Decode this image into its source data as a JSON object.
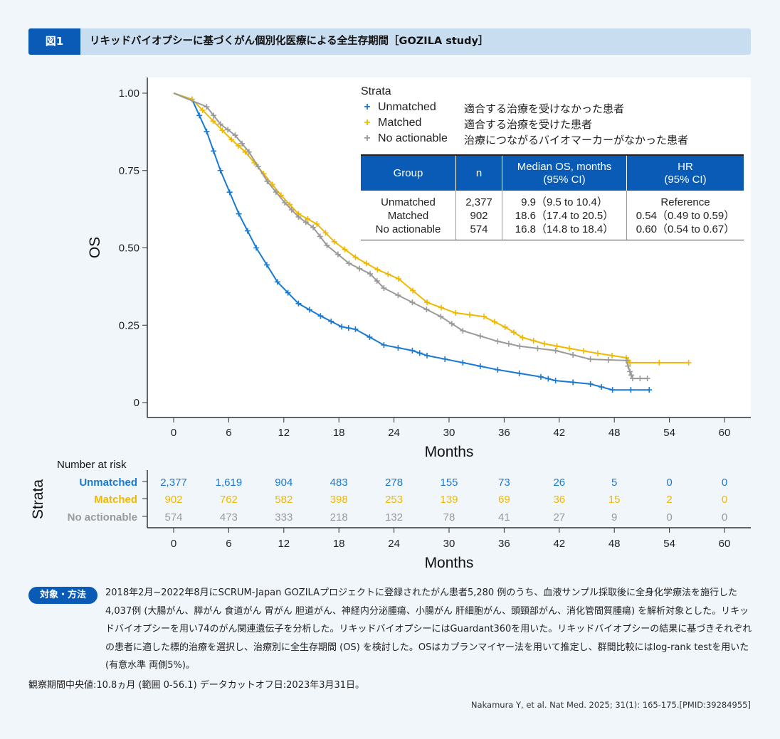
{
  "header": {
    "figure_label": "図1",
    "title": "リキッドバイオプシーに基づくがん個別化医療による全生存期間［GOZILA study］"
  },
  "colors": {
    "unmatched": "#1a7ad1",
    "matched": "#f0b800",
    "no_actionable": "#9a9a9a",
    "accent": "#0a5bb5"
  },
  "legend": {
    "title": "Strata",
    "items": [
      {
        "label": "Unmatched",
        "description": "適合する治療を受けなかった患者"
      },
      {
        "label": "Matched",
        "description": "適合する治療を受けた患者"
      },
      {
        "label": "No actionable",
        "description": "治療につながるバイオマーカーがなかった患者"
      }
    ]
  },
  "stats_table": {
    "headers": [
      "Group",
      "n",
      "Median OS, months\n(95% CI)",
      "HR\n(95% CI)"
    ],
    "rows": [
      [
        "Unmatched",
        "2,377",
        "9.9（9.5 to 10.4）",
        "Reference"
      ],
      [
        "Matched",
        "902",
        "18.6（17.4 to 20.5）",
        "0.54（0.49 to 0.59）"
      ],
      [
        "No actionable",
        "574",
        "16.8（14.8 to 18.4）",
        "0.60（0.54 to 0.67）"
      ]
    ]
  },
  "chart_data": {
    "type": "line",
    "subtype": "kaplan-meier",
    "xlabel": "Months",
    "ylabel": "OS",
    "xlim": [
      -3,
      63
    ],
    "ylim": [
      -0.05,
      1.05
    ],
    "xticks": [
      "0",
      "6",
      "12",
      "18",
      "24",
      "30",
      "36",
      "42",
      "48",
      "54",
      "60"
    ],
    "yticks": [
      "0",
      "0.25",
      "0.50",
      "0.75",
      "1.00"
    ],
    "grid": false,
    "legend_position": "top-right",
    "series": [
      {
        "name": "Unmatched",
        "points": [
          [
            0,
            1
          ],
          [
            2,
            0.98
          ],
          [
            3.6,
            0.876
          ],
          [
            5.1,
            0.75
          ],
          [
            7.1,
            0.61
          ],
          [
            9,
            0.5
          ],
          [
            11.3,
            0.39
          ],
          [
            13.6,
            0.32
          ],
          [
            16,
            0.28
          ],
          [
            18.3,
            0.245
          ],
          [
            19.8,
            0.237
          ],
          [
            22.9,
            0.186
          ],
          [
            26,
            0.168
          ],
          [
            27.6,
            0.152
          ],
          [
            31.5,
            0.129
          ],
          [
            35.3,
            0.106
          ],
          [
            40,
            0.083
          ],
          [
            41.6,
            0.071
          ],
          [
            45.4,
            0.06
          ],
          [
            47.8,
            0.041
          ],
          [
            51.8,
            0.041
          ]
        ]
      },
      {
        "name": "Matched",
        "points": [
          [
            0,
            1
          ],
          [
            2,
            0.98
          ],
          [
            4.3,
            0.91
          ],
          [
            6.3,
            0.85
          ],
          [
            7.8,
            0.81
          ],
          [
            9.8,
            0.74
          ],
          [
            11.7,
            0.67
          ],
          [
            13.6,
            0.61
          ],
          [
            15.6,
            0.577
          ],
          [
            17.5,
            0.52
          ],
          [
            19.8,
            0.47
          ],
          [
            22.2,
            0.43
          ],
          [
            24.5,
            0.4
          ],
          [
            27.6,
            0.324
          ],
          [
            30.7,
            0.29
          ],
          [
            33.8,
            0.278
          ],
          [
            36.1,
            0.244
          ],
          [
            38,
            0.21
          ],
          [
            40.4,
            0.19
          ],
          [
            43.1,
            0.175
          ],
          [
            46.2,
            0.159
          ],
          [
            49.3,
            0.145
          ],
          [
            49.7,
            0.129
          ],
          [
            56.1,
            0.129
          ]
        ]
      },
      {
        "name": "No actionable",
        "points": [
          [
            0,
            1
          ],
          [
            3.6,
            0.956
          ],
          [
            5.1,
            0.9
          ],
          [
            6.7,
            0.864
          ],
          [
            8.2,
            0.81
          ],
          [
            10.2,
            0.715
          ],
          [
            12.1,
            0.646
          ],
          [
            13.6,
            0.6
          ],
          [
            15.2,
            0.566
          ],
          [
            16.7,
            0.508
          ],
          [
            19.1,
            0.45
          ],
          [
            21.4,
            0.416
          ],
          [
            22.9,
            0.37
          ],
          [
            26,
            0.324
          ],
          [
            29.1,
            0.278
          ],
          [
            31.5,
            0.232
          ],
          [
            35.3,
            0.198
          ],
          [
            37.7,
            0.182
          ],
          [
            41.6,
            0.168
          ],
          [
            45.4,
            0.14
          ],
          [
            49.3,
            0.136
          ],
          [
            49.7,
            0.1
          ],
          [
            50,
            0.078
          ],
          [
            51.6,
            0.078
          ]
        ]
      }
    ],
    "risk_table": {
      "title": "Number at risk",
      "ylabel": "Strata",
      "xlabel": "Months",
      "times": [
        "0",
        "6",
        "12",
        "18",
        "24",
        "30",
        "36",
        "42",
        "48",
        "54",
        "60"
      ],
      "rows": [
        {
          "name": "Unmatched",
          "values": [
            "2,377",
            "1,619",
            "904",
            "483",
            "278",
            "155",
            "73",
            "26",
            "5",
            "0",
            "0"
          ]
        },
        {
          "name": "Matched",
          "values": [
            "902",
            "762",
            "582",
            "398",
            "253",
            "139",
            "69",
            "36",
            "15",
            "2",
            "0"
          ]
        },
        {
          "name": "No actionable",
          "values": [
            "574",
            "473",
            "333",
            "218",
            "132",
            "78",
            "41",
            "27",
            "9",
            "0",
            "0"
          ]
        }
      ]
    }
  },
  "methods": {
    "label": "対象・方法",
    "text": "2018年2月~2022年8月にSCRUM-Japan GOZILAプロジェクトに登録されたがん患者5,280 例のうち、血液サンプル採取後に全身化学療法を施行した4,037例 (大腸がん、膵がん 食道がん 胃がん 胆道がん、神経内分泌腫瘍、小腸がん 肝細胞がん、頭頸部がん、消化管間質腫瘍) を解析対象とした。リキッドバイオプシーを用い74のがん関連遺伝子を分析した。リキッドバイオプシーにはGuardant360を用いた。リキッドバイオプシーの結果に基づきそれぞれの患者に適した標的治療を選択し、治療別に全生存期間 (OS) を検討した。OSはカプランマイヤー法を用いて推定し、群間比較にはlog-rank testを用いた (有意水準 両側5%)。"
  },
  "observation": "観察期間中央値:10.8ヵ月 (範囲 0-56.1) データカットオフ日:2023年3月31日。",
  "citation": "Nakamura Y, et al. Nat Med. 2025; 31(1): 165-175.[PMID:39284955]"
}
